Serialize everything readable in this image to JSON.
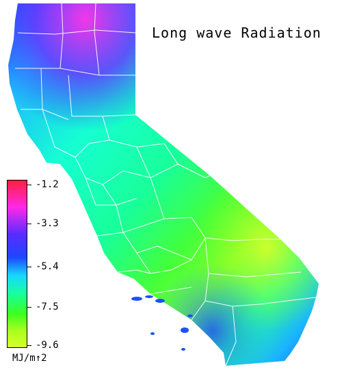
{
  "title": "Long wave Radiation",
  "legend": {
    "unit": "MJ/m↑2",
    "ticks": [
      "-1.2",
      "-3.3",
      "-5.4",
      "-7.5",
      "-9.6"
    ],
    "range": [
      -9.6,
      -1.2
    ],
    "colors": [
      "#ff1f3f",
      "#ff28e8",
      "#5a2cff",
      "#1e46ff",
      "#16d8ff",
      "#18ff9c",
      "#3cff20",
      "#a8ff1e",
      "#d8ff2a"
    ]
  },
  "map": {
    "region": "California",
    "boundary_color": "#ffffff"
  }
}
